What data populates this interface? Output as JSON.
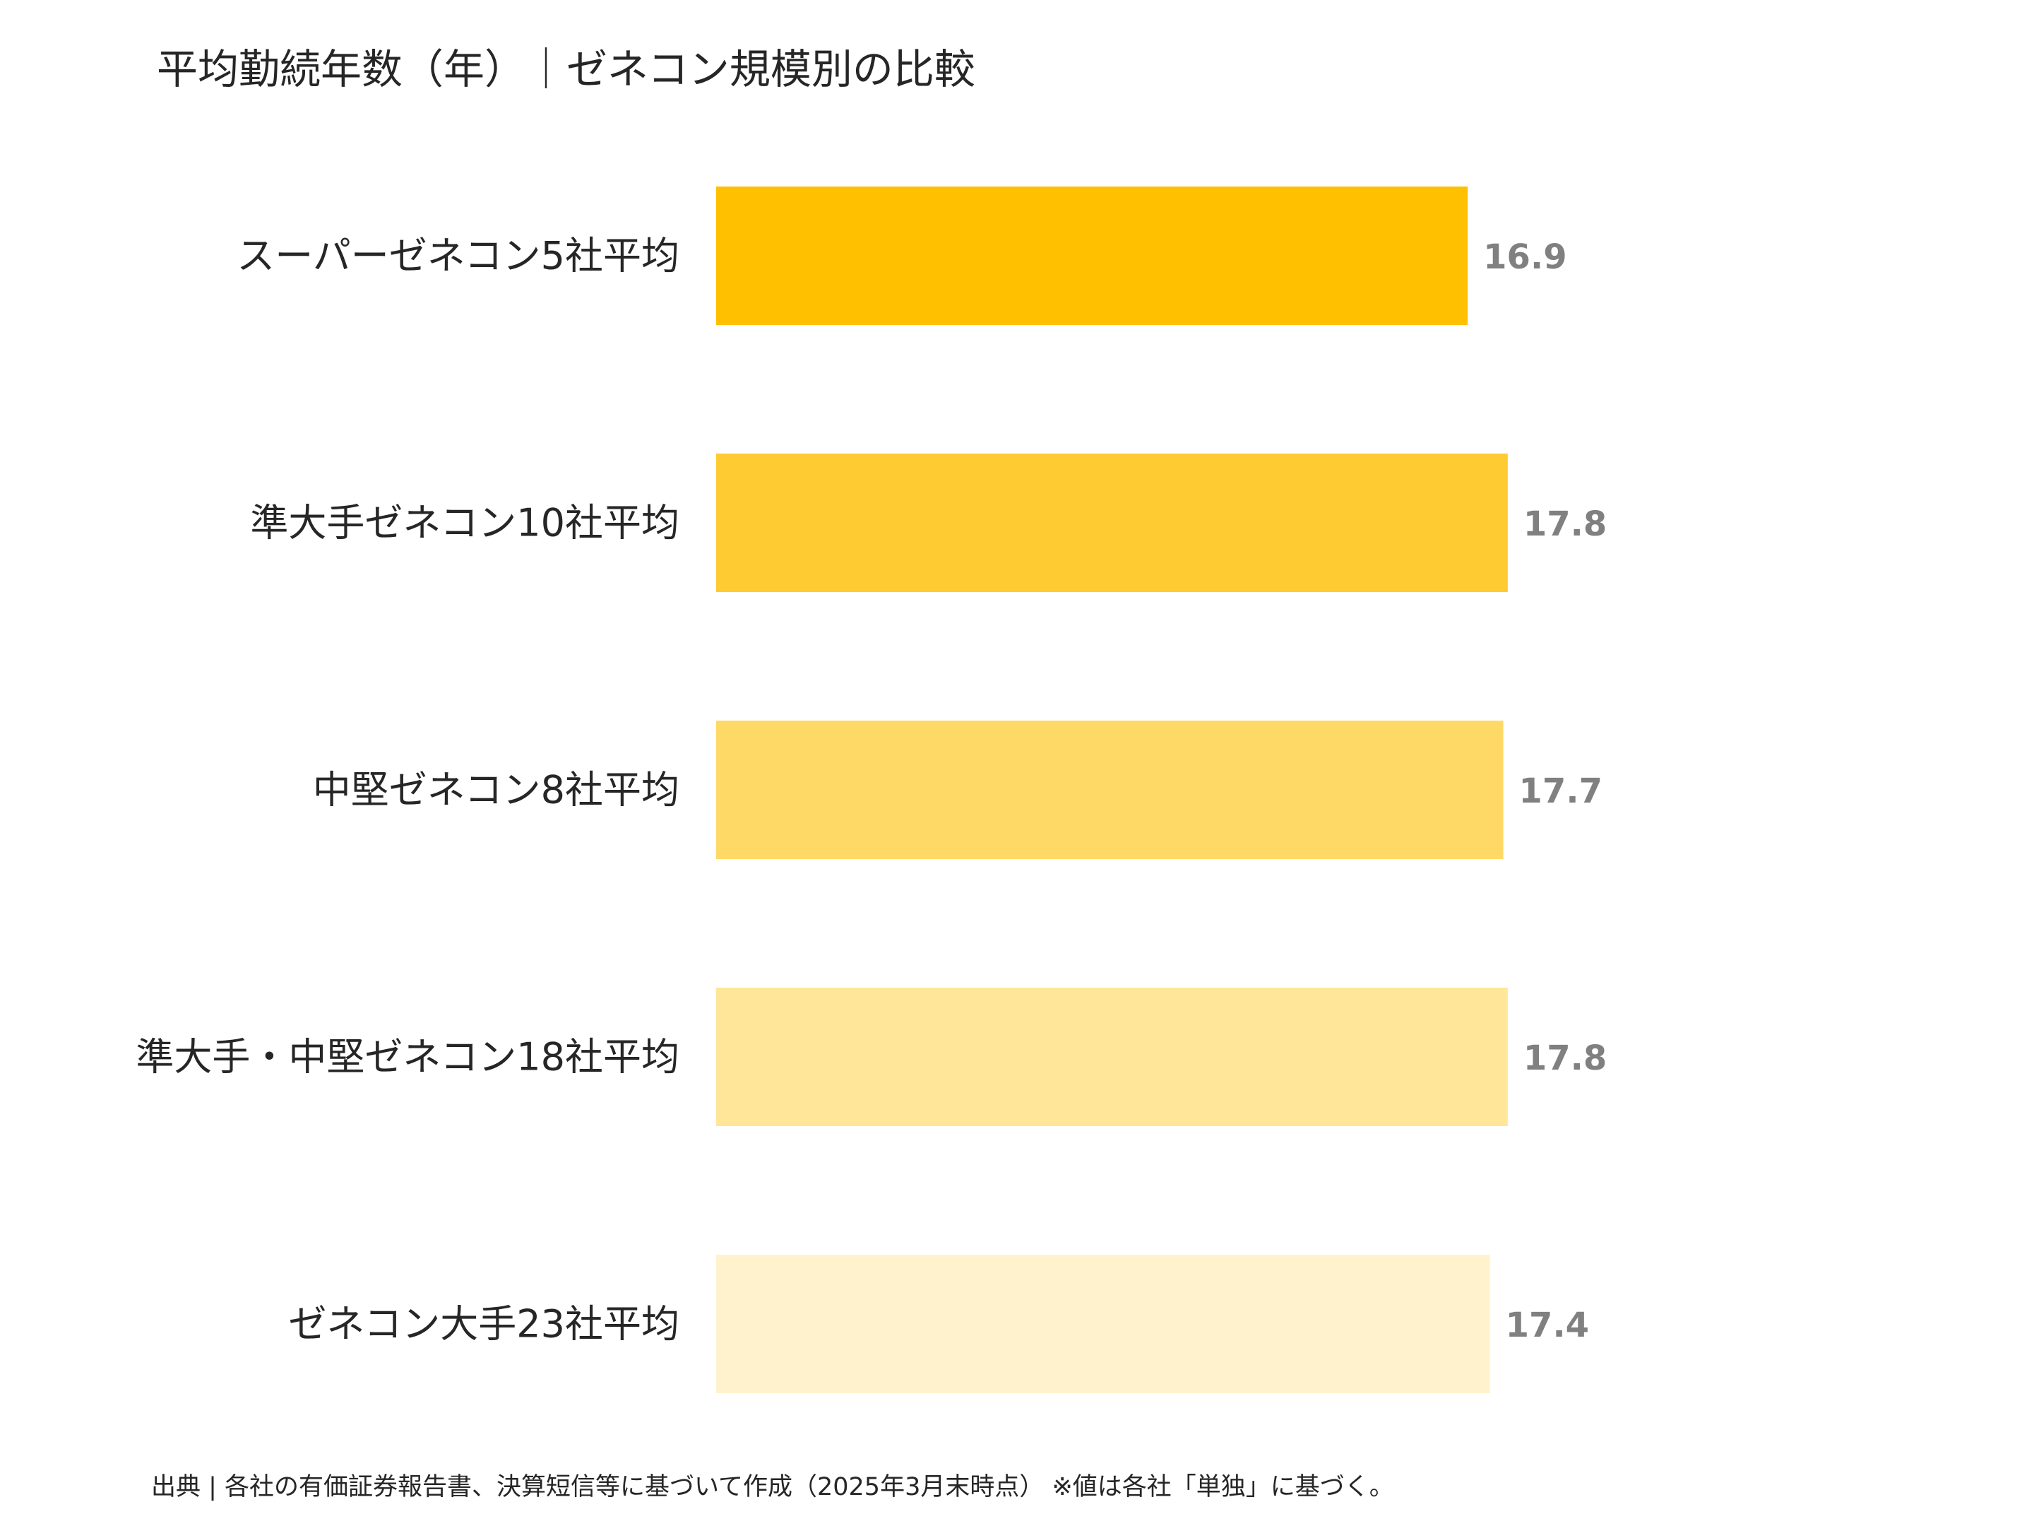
{
  "title": "平均勤続年数（年）｜ゼネコン規模別の比較",
  "source": "出典 | 各社の有価証券報告書、決算短信等に基づいて作成（2025年3月末時点） ※値は各社「単独」に基づく。",
  "chart_data": {
    "type": "bar",
    "orientation": "horizontal",
    "title": "平均勤続年数（年）｜ゼネコン規模別の比較",
    "xlabel": "",
    "ylabel": "",
    "grid": false,
    "legend": "none",
    "xlim": [
      0,
      28.3
    ],
    "categories": [
      "スーパーゼネコン5社平均",
      "準大手ゼネコン10社平均",
      "中堅ゼネコン8社平均",
      "準大手・中堅ゼネコン18社平均",
      "ゼネコン大手23社平均"
    ],
    "values": [
      16.9,
      17.8,
      17.7,
      17.8,
      17.4
    ],
    "value_labels": [
      "16.9",
      "17.8",
      "17.7",
      "17.8",
      "17.4"
    ],
    "colors": [
      "#FFC000",
      "#FFCB33",
      "#FFD966",
      "#FFE699",
      "#FFF2CC"
    ]
  }
}
